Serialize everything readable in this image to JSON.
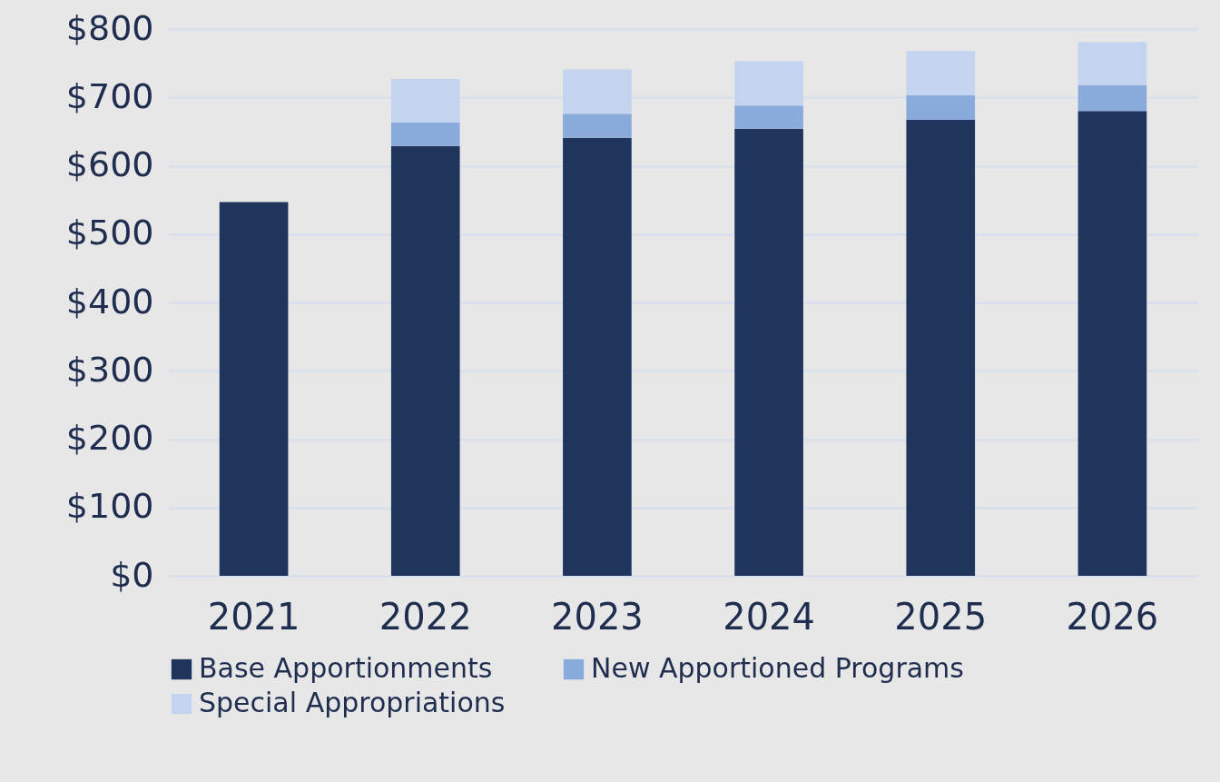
{
  "chart_data": {
    "type": "bar",
    "stacked": true,
    "categories": [
      "2021",
      "2022",
      "2023",
      "2024",
      "2025",
      "2026"
    ],
    "series": [
      {
        "name": "Base Apportionments",
        "color": "#1f355e",
        "values": [
          547,
          629,
          641,
          654,
          667,
          680
        ]
      },
      {
        "name": "New Apportioned Programs",
        "color": "#8aaadc",
        "values": [
          null,
          34,
          35,
          34,
          36,
          38
        ]
      },
      {
        "name": "Special Appropriations",
        "color": "#c5d4ee",
        "values": [
          null,
          64,
          65,
          65,
          65,
          63
        ]
      }
    ],
    "ylim": [
      0,
      800
    ],
    "yticks": [
      {
        "value": 0,
        "label": "$0"
      },
      {
        "value": 100,
        "label": "$100"
      },
      {
        "value": 200,
        "label": "$200"
      },
      {
        "value": 300,
        "label": "$300"
      },
      {
        "value": 400,
        "label": "$400"
      },
      {
        "value": 500,
        "label": "$500"
      },
      {
        "value": 600,
        "label": "$600"
      },
      {
        "value": 700,
        "label": "$700"
      },
      {
        "value": 800,
        "label": "$800"
      }
    ],
    "grid": "y",
    "legend": "bottom"
  }
}
